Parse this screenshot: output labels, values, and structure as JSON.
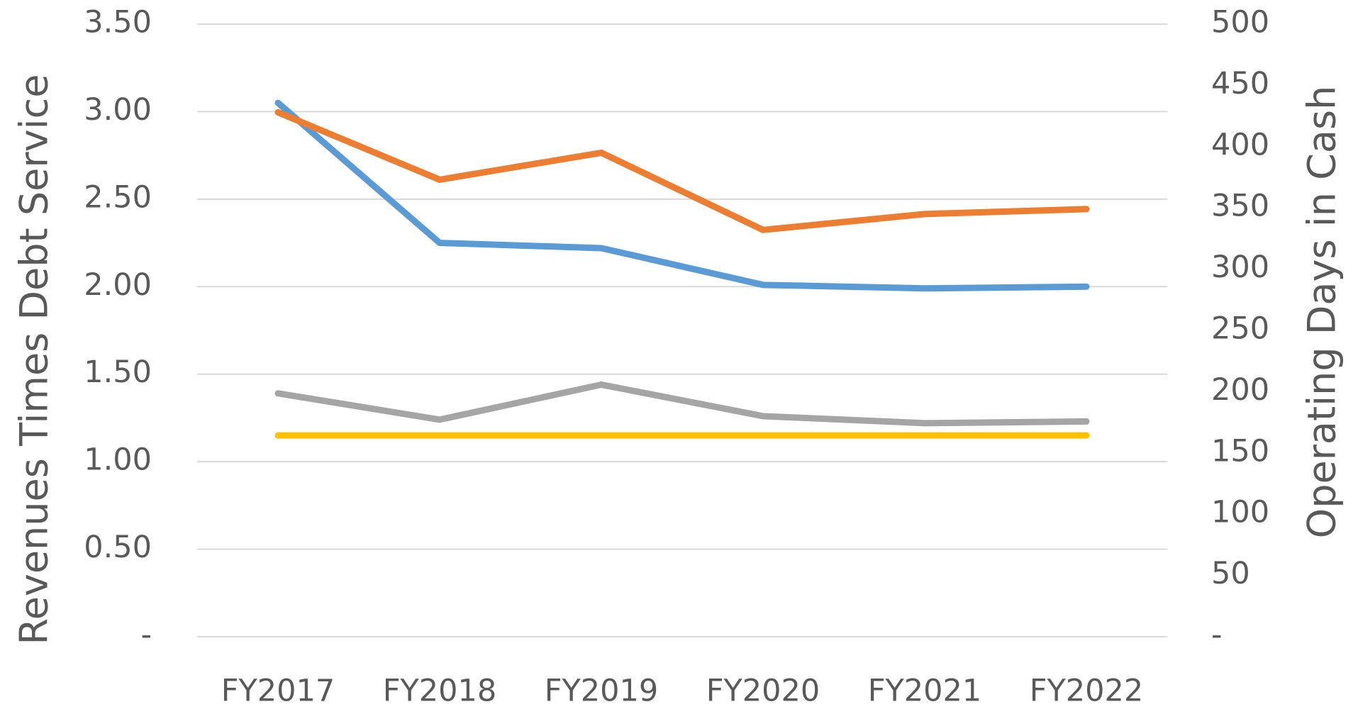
{
  "chart_data": {
    "type": "line",
    "ylabel": "Revenues Times Debt Service",
    "y2label": "Operating Days in Cash",
    "categories": [
      "FY2017",
      "FY2018",
      "FY2019",
      "FY2020",
      "FY2021",
      "FY2022"
    ],
    "series": [
      {
        "color": "#5b9bd5",
        "values": [
          3.05,
          2.25,
          2.22,
          2.01,
          1.99,
          2.0
        ]
      },
      {
        "color": "#ed7d31",
        "axis": "y2",
        "values": [
          428,
          373,
          395,
          332,
          345,
          349
        ]
      },
      {
        "color": "#a5a5a5",
        "values": [
          1.39,
          1.24,
          1.44,
          1.26,
          1.22,
          1.23
        ]
      },
      {
        "color": "#ffc000",
        "values": [
          1.15,
          1.15,
          1.15,
          1.15,
          1.15,
          1.15
        ]
      }
    ],
    "ylim": [
      0,
      3.5
    ],
    "yticks": [
      {
        "value": 0,
        "label": "-"
      },
      {
        "value": 0.5,
        "label": "0.50"
      },
      {
        "value": 1,
        "label": "1.00"
      },
      {
        "value": 1.5,
        "label": "1.50"
      },
      {
        "value": 2,
        "label": "2.00"
      },
      {
        "value": 2.5,
        "label": "2.50"
      },
      {
        "value": 3,
        "label": "3.00"
      },
      {
        "value": 3.5,
        "label": "3.50"
      }
    ],
    "y2lim": [
      0,
      500
    ],
    "y2ticks": [
      {
        "value": 0,
        "label": "-"
      },
      50,
      100,
      150,
      200,
      250,
      300,
      350,
      400,
      450,
      500
    ],
    "grid": true
  }
}
